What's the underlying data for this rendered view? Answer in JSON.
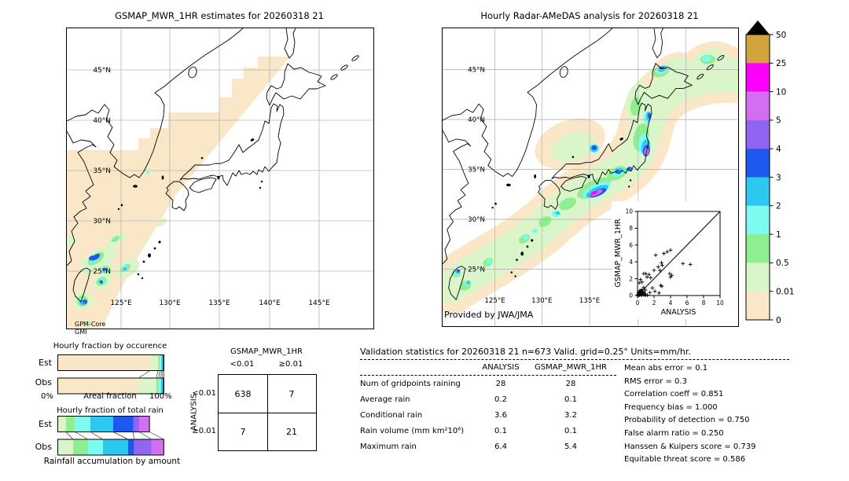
{
  "figure": {
    "left_map": {
      "title": "GSMAP_MWR_1HR estimates for 20260318 21",
      "source_line1": "GPM-Core",
      "source_line2": "GMI",
      "lat_labels": [
        "45°N",
        "40°N",
        "35°N",
        "30°N",
        "25°N"
      ],
      "lon_labels": [
        "125°E",
        "130°E",
        "135°E",
        "140°E",
        "145°E"
      ]
    },
    "right_map": {
      "title": "Hourly Radar-AMeDAS analysis for 20260318 21",
      "credit": "Provided by JWA/JMA",
      "lat_labels": [
        "45°N",
        "40°N",
        "35°N",
        "30°N",
        "25°N"
      ],
      "lon_labels": [
        "125°E",
        "130°E",
        "135°E"
      ]
    },
    "colorbar": {
      "tick_labels": [
        "50",
        "25",
        "10",
        "5",
        "4",
        "3",
        "2",
        "1",
        "0.5",
        "0.01",
        "0"
      ],
      "colors_top_to_bottom": [
        "#d2a43c",
        "#fb00fb",
        "#d36ef0",
        "#9066f0",
        "#1c58ee",
        "#2cc8f0",
        "#7efbf0",
        "#8fee8f",
        "#d9f5c9",
        "#fae7c8"
      ],
      "overflow_color": "#000000"
    }
  },
  "occurrence": {
    "title": "Hourly fraction by occurence",
    "row_labels": [
      "Est",
      "Obs"
    ],
    "axis_min": "0%",
    "axis_label": "Areal fraction",
    "axis_max": "100%"
  },
  "totalrain": {
    "title": "Hourly fraction of total rain",
    "row_labels": [
      "Est",
      "Obs"
    ],
    "caption": "Rainfall accumulation by amount"
  },
  "contingency": {
    "title": "GSMAP_MWR_1HR",
    "col_labels": [
      "<0.01",
      "≥0.01"
    ],
    "row_axis_label": "ANALYSIS",
    "row_labels": [
      "<0.01",
      "≥0.01"
    ]
  },
  "stats": {
    "header": "Validation statistics for 20260318 21  n=673 Valid. grid=0.25° Units=mm/hr.",
    "col_headers": [
      "ANALYSIS",
      "GSMAP_MWR_1HR"
    ],
    "rows": [
      {
        "label": "Num of gridpoints raining",
        "analysis": "28",
        "gsmap": "28"
      },
      {
        "label": "Average rain",
        "analysis": "0.2",
        "gsmap": "0.1"
      },
      {
        "label": "Conditional rain",
        "analysis": "3.6",
        "gsmap": "3.2"
      },
      {
        "label": "Rain volume (mm km²10⁶)",
        "analysis": "0.1",
        "gsmap": "0.1"
      },
      {
        "label": "Maximum rain",
        "analysis": "6.4",
        "gsmap": "5.4"
      }
    ],
    "metrics": [
      {
        "label": "Mean abs error",
        "value": "0.1"
      },
      {
        "label": "RMS error",
        "value": "0.3"
      },
      {
        "label": "Correlation coeff",
        "value": "0.851"
      },
      {
        "label": "Frequency bias",
        "value": "1.000"
      },
      {
        "label": "Probability of detection",
        "value": "0.750"
      },
      {
        "label": "False alarm ratio",
        "value": "0.250"
      },
      {
        "label": "Hanssen & Kuipers score",
        "value": "0.739"
      },
      {
        "label": "Equitable threat score",
        "value": "0.586"
      }
    ]
  },
  "chart_data": [
    {
      "type": "map",
      "title": "GSMAP_MWR_1HR estimates for 20260318 21",
      "description": "GPM-Core GMI microwave swath hourly rain estimate (mm/hr), diagonal swath over East Asia with rain cells near Taiwan and the East China Sea",
      "lat_ticks": [
        "25°N",
        "30°N",
        "35°N",
        "40°N",
        "45°N"
      ],
      "lon_ticks": [
        "125°E",
        "130°E",
        "135°E",
        "140°E",
        "145°E"
      ]
    },
    {
      "type": "map",
      "title": "Hourly Radar-AMeDAS analysis for 20260318 21",
      "description": "Radar-AMeDAS analyzed hourly rain (mm/hr), rain band along the Pacific coast of Japan from Taiwan to Hokkaido, heaviest (>10 mm/hr) south of the Kii peninsula",
      "credit": "Provided by JWA/JMA",
      "lat_ticks": [
        "25°N",
        "30°N",
        "35°N",
        "40°N",
        "45°N"
      ],
      "lon_ticks": [
        "125°E",
        "130°E",
        "135°E"
      ]
    },
    {
      "type": "scatter",
      "xlabel": "ANALYSIS",
      "ylabel": "GSMAP_MWR_1HR",
      "xlim": [
        0,
        10
      ],
      "ylim": [
        0,
        10
      ],
      "x_ticks": [
        0,
        2,
        4,
        6,
        8,
        10
      ],
      "y_ticks": [
        0,
        2,
        4,
        6,
        8,
        10
      ],
      "identity_line": true,
      "points": [
        [
          0.05,
          0.1
        ],
        [
          0.1,
          0.05
        ],
        [
          0.1,
          0.3
        ],
        [
          0.15,
          0.15
        ],
        [
          0.2,
          0.05
        ],
        [
          0.2,
          0.45
        ],
        [
          0.25,
          0.2
        ],
        [
          0.3,
          0.1
        ],
        [
          0.3,
          0.6
        ],
        [
          0.35,
          0.3
        ],
        [
          0.4,
          0.15
        ],
        [
          0.4,
          0.5
        ],
        [
          0.5,
          0.05
        ],
        [
          0.5,
          0.35
        ],
        [
          0.55,
          0.7
        ],
        [
          0.6,
          0.2
        ],
        [
          0.65,
          0.45
        ],
        [
          0.7,
          0.1
        ],
        [
          0.75,
          0.95
        ],
        [
          0.8,
          0.35
        ],
        [
          0.9,
          0.05
        ],
        [
          0.95,
          0.65
        ],
        [
          1.0,
          0.1
        ],
        [
          0.2,
          1.5
        ],
        [
          0.35,
          1.9
        ],
        [
          0.55,
          1.6
        ],
        [
          0.75,
          2.6
        ],
        [
          1.0,
          2.6
        ],
        [
          1.15,
          2.2
        ],
        [
          1.2,
          0.05
        ],
        [
          1.4,
          2.5
        ],
        [
          1.5,
          0.35
        ],
        [
          1.6,
          2.1
        ],
        [
          1.8,
          0.9
        ],
        [
          2.0,
          3.0
        ],
        [
          2.1,
          0.5
        ],
        [
          2.2,
          4.8
        ],
        [
          2.5,
          3.4
        ],
        [
          2.6,
          0.3
        ],
        [
          2.7,
          3.0
        ],
        [
          2.8,
          1.2
        ],
        [
          2.95,
          1.1
        ],
        [
          2.9,
          3.9
        ],
        [
          3.0,
          3.6
        ],
        [
          3.2,
          5.0
        ],
        [
          3.6,
          5.2
        ],
        [
          3.9,
          2.6
        ],
        [
          4.0,
          2.2
        ],
        [
          4.0,
          5.4
        ],
        [
          4.15,
          2.4
        ],
        [
          5.5,
          3.8
        ],
        [
          6.4,
          3.7
        ]
      ]
    },
    {
      "type": "table",
      "title": "Contingency table, ANALYSIS vs GSMAP_MWR_1HR, n=673",
      "col_group": "GSMAP_MWR_1HR",
      "row_group": "ANALYSIS",
      "col_labels": [
        "<0.01",
        "≥0.01"
      ],
      "row_labels": [
        "<0.01",
        "≥0.01"
      ],
      "values": [
        [
          638,
          7
        ],
        [
          7,
          21
        ]
      ]
    },
    {
      "type": "bar",
      "title": "Hourly fraction by occurence (areal fraction %)",
      "categories": [
        "<0.01",
        "0.01-0.5",
        "0.5-1",
        "1-2",
        "2-3",
        "3-4"
      ],
      "series": [
        {
          "name": "Est",
          "values": [
            86.8,
            7.8,
            1.6,
            1.4,
            1.2,
            1.2
          ]
        },
        {
          "name": "Obs",
          "values": [
            76.2,
            16.6,
            2.2,
            2.2,
            1.6,
            1.2
          ]
        }
      ],
      "colors": [
        "#fae7c8",
        "#d9f5c9",
        "#8fee8f",
        "#7efbf0",
        "#2cc8f0",
        "#1c58ee"
      ]
    },
    {
      "type": "bar",
      "title": "Hourly fraction of total rain / rainfall accumulation by amount (%)",
      "categories": [
        "0.01-0.5",
        "0.5-1",
        "1-2",
        "2-3",
        "3-4",
        "4-5",
        ">5"
      ],
      "series": [
        {
          "name": "Est",
          "values": [
            7.7,
            8.2,
            14.8,
            21.4,
            19.0,
            5.6,
            9.7
          ]
        },
        {
          "name": "Obs",
          "values": [
            14.5,
            14.0,
            14.0,
            23.7,
            5.6,
            16.6,
            11.5
          ]
        }
      ],
      "colors": [
        "#d9f5c9",
        "#8fee8f",
        "#7efbf0",
        "#2cc8f0",
        "#1c58ee",
        "#9066f0",
        "#d36ef0"
      ]
    },
    {
      "type": "heatmap",
      "title": "Rain rate colour scale (mm/hr)",
      "levels": [
        0,
        0.01,
        0.5,
        1,
        2,
        3,
        4,
        5,
        10,
        25,
        50
      ],
      "colors_low_to_high": [
        "#fae7c8",
        "#d9f5c9",
        "#8fee8f",
        "#7efbf0",
        "#2cc8f0",
        "#1c58ee",
        "#9066f0",
        "#d36ef0",
        "#fb00fb",
        "#d2a43c"
      ],
      "overflow_color": "#000000"
    }
  ]
}
